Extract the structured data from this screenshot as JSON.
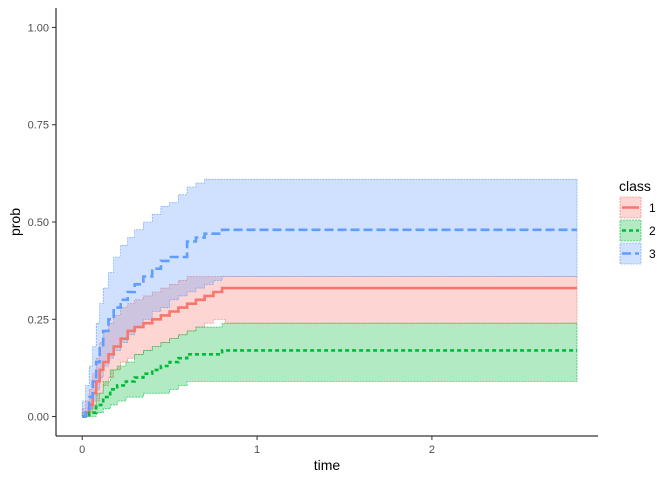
{
  "chart_data": {
    "type": "line",
    "xlabel": "time",
    "ylabel": "prob",
    "xlim": [
      -0.15,
      2.95
    ],
    "ylim": [
      -0.05,
      1.05
    ],
    "xticks": [
      0,
      1,
      2
    ],
    "xtick_labels": [
      "0",
      "1",
      "2"
    ],
    "yticks": [
      0.0,
      0.25,
      0.5,
      0.75,
      1.0
    ],
    "ytick_labels": [
      "0.00",
      "0.25",
      "0.50",
      "0.75",
      "1.00"
    ],
    "grid": false,
    "legend": {
      "title": "class",
      "position": "right"
    },
    "series": [
      {
        "name": "1",
        "color": "#F8766D",
        "line_style": "solid",
        "x": [
          0.0,
          0.02,
          0.04,
          0.06,
          0.08,
          0.1,
          0.12,
          0.15,
          0.18,
          0.22,
          0.26,
          0.3,
          0.35,
          0.4,
          0.45,
          0.5,
          0.55,
          0.6,
          0.65,
          0.7,
          0.75,
          0.8,
          0.82,
          2.83
        ],
        "y": [
          0.0,
          0.01,
          0.03,
          0.06,
          0.09,
          0.12,
          0.14,
          0.16,
          0.18,
          0.2,
          0.22,
          0.23,
          0.24,
          0.25,
          0.26,
          0.27,
          0.28,
          0.29,
          0.3,
          0.31,
          0.32,
          0.33,
          0.33,
          0.33
        ],
        "lower": [
          0.0,
          0.0,
          0.01,
          0.02,
          0.04,
          0.06,
          0.08,
          0.1,
          0.12,
          0.14,
          0.15,
          0.16,
          0.17,
          0.18,
          0.19,
          0.2,
          0.21,
          0.22,
          0.23,
          0.24,
          0.25,
          0.25,
          0.24,
          0.24
        ],
        "upper": [
          0.02,
          0.04,
          0.07,
          0.11,
          0.15,
          0.19,
          0.22,
          0.24,
          0.26,
          0.28,
          0.29,
          0.3,
          0.31,
          0.32,
          0.33,
          0.34,
          0.35,
          0.36,
          0.36,
          0.36,
          0.36,
          0.36,
          0.36,
          0.36
        ]
      },
      {
        "name": "2",
        "color": "#00BA38",
        "line_style": "dashed",
        "x": [
          0.0,
          0.04,
          0.08,
          0.12,
          0.16,
          0.2,
          0.25,
          0.3,
          0.35,
          0.4,
          0.45,
          0.5,
          0.55,
          0.6,
          0.65,
          0.7,
          0.75,
          0.8,
          0.82,
          2.83
        ],
        "y": [
          0.0,
          0.01,
          0.03,
          0.05,
          0.07,
          0.08,
          0.09,
          0.1,
          0.11,
          0.12,
          0.13,
          0.14,
          0.15,
          0.16,
          0.16,
          0.16,
          0.16,
          0.17,
          0.17,
          0.17
        ],
        "lower": [
          0.0,
          0.0,
          0.01,
          0.02,
          0.03,
          0.04,
          0.05,
          0.05,
          0.06,
          0.06,
          0.06,
          0.07,
          0.08,
          0.09,
          0.09,
          0.09,
          0.09,
          0.09,
          0.09,
          0.09
        ],
        "upper": [
          0.01,
          0.03,
          0.06,
          0.09,
          0.12,
          0.13,
          0.14,
          0.16,
          0.17,
          0.18,
          0.19,
          0.2,
          0.21,
          0.22,
          0.23,
          0.23,
          0.23,
          0.24,
          0.24,
          0.24
        ]
      },
      {
        "name": "3",
        "color": "#619CFF",
        "line_style": "longdash",
        "x": [
          0.0,
          0.02,
          0.04,
          0.06,
          0.08,
          0.1,
          0.12,
          0.15,
          0.18,
          0.22,
          0.26,
          0.3,
          0.35,
          0.4,
          0.45,
          0.5,
          0.55,
          0.6,
          0.65,
          0.7,
          0.75,
          0.8,
          0.82,
          2.83
        ],
        "y": [
          0.0,
          0.02,
          0.05,
          0.09,
          0.14,
          0.18,
          0.22,
          0.25,
          0.28,
          0.3,
          0.32,
          0.34,
          0.36,
          0.38,
          0.4,
          0.41,
          0.41,
          0.45,
          0.46,
          0.47,
          0.47,
          0.48,
          0.48,
          0.48
        ],
        "lower": [
          0.0,
          0.0,
          0.02,
          0.04,
          0.07,
          0.1,
          0.13,
          0.15,
          0.17,
          0.19,
          0.21,
          0.23,
          0.25,
          0.27,
          0.28,
          0.3,
          0.31,
          0.32,
          0.33,
          0.34,
          0.35,
          0.36,
          0.36,
          0.36
        ],
        "upper": [
          0.04,
          0.08,
          0.13,
          0.18,
          0.24,
          0.29,
          0.33,
          0.37,
          0.41,
          0.44,
          0.46,
          0.48,
          0.5,
          0.52,
          0.54,
          0.55,
          0.57,
          0.59,
          0.6,
          0.61,
          0.61,
          0.61,
          0.61,
          0.61
        ]
      }
    ]
  }
}
